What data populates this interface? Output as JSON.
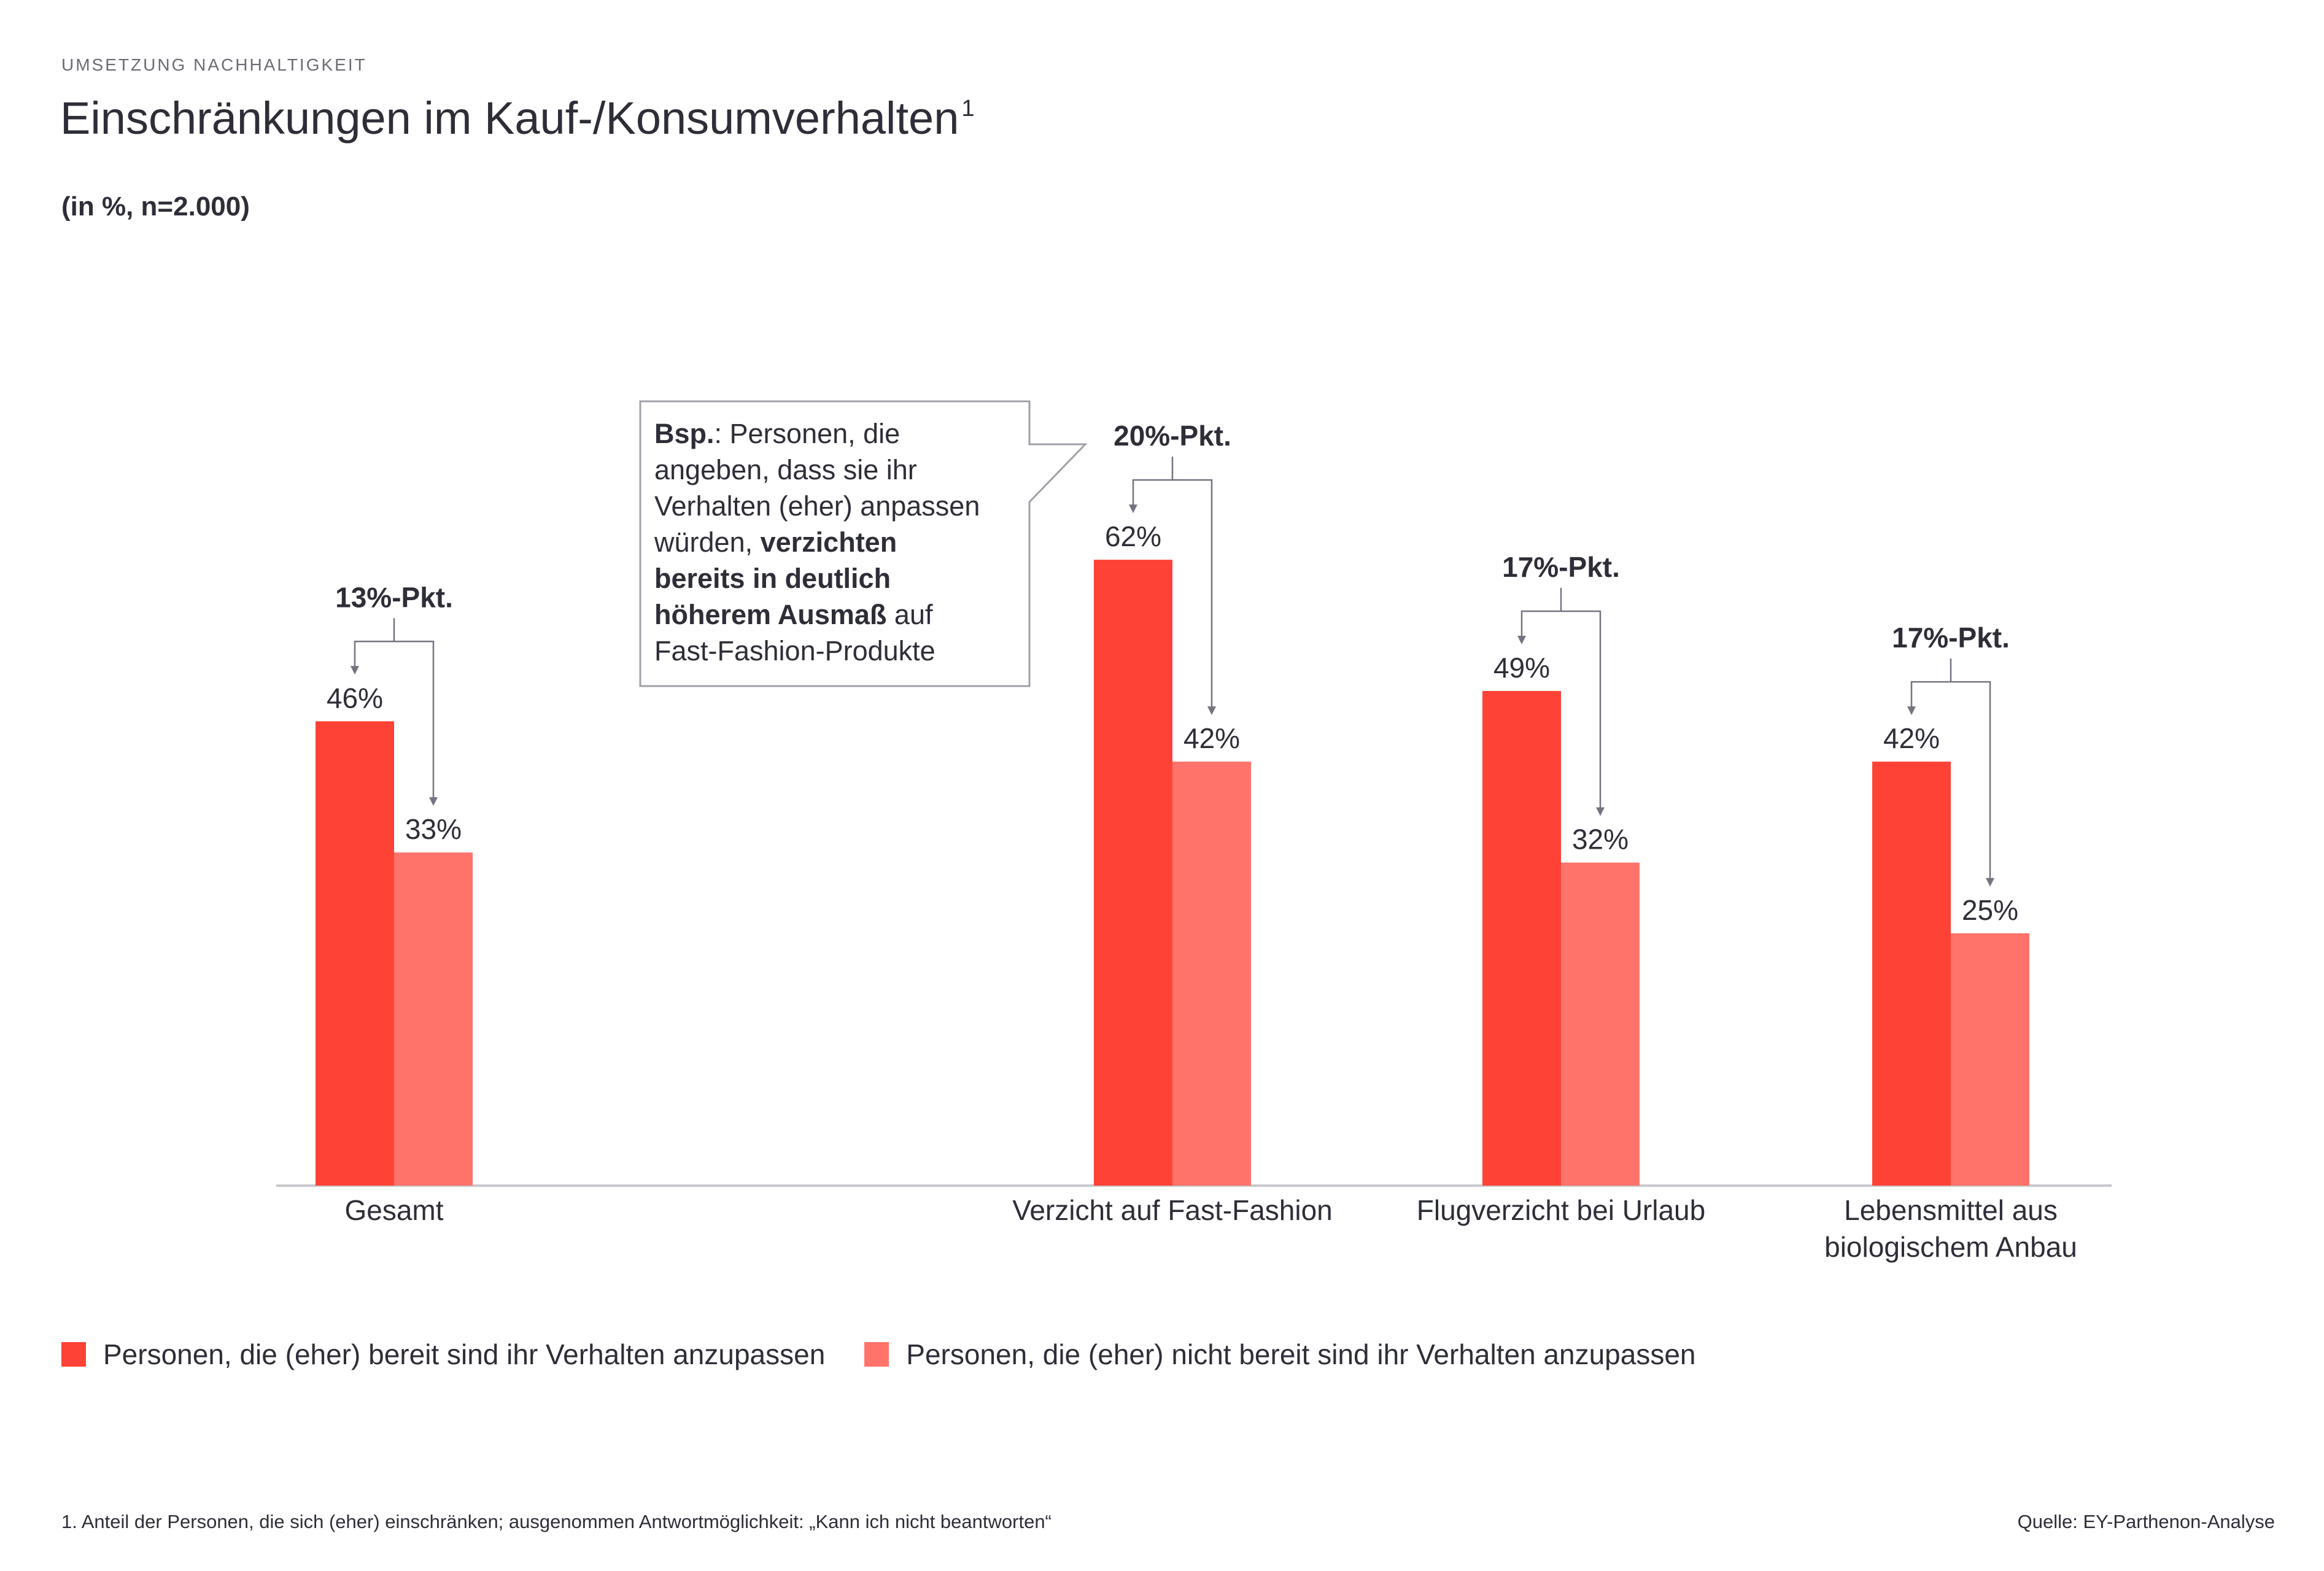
{
  "header": {
    "eyebrow": "UMSETZUNG NACHHALTIGKEIT",
    "title": "Einschränkungen im Kauf-/Konsumverhalten",
    "title_footnote_marker": "1",
    "subtitle": "(in %, n=2.000)"
  },
  "colors": {
    "series_1": "#ff4236",
    "series_2": "#ff736a",
    "axis": "#c8c8cc",
    "bracket": "#747480",
    "callout_border": "#a0a0a8"
  },
  "chart_data": {
    "type": "bar",
    "categories": [
      "Gesamt",
      "Verzicht auf Fast-Fashion",
      "Flugverzicht bei Urlaub",
      "Lebensmittel aus biologischem Anbau"
    ],
    "category_lines": [
      [
        "Gesamt"
      ],
      [
        "Verzicht auf Fast-Fashion"
      ],
      [
        "Flugverzicht bei Urlaub"
      ],
      [
        "Lebensmittel aus",
        "biologischem Anbau"
      ]
    ],
    "series": [
      {
        "name": "Personen, die (eher) bereit sind ihr Verhalten anzupassen",
        "values": [
          46,
          62,
          49,
          42
        ],
        "labels": [
          "46%",
          "62%",
          "49%",
          "42%"
        ]
      },
      {
        "name": "Personen, die (eher) nicht bereit sind ihr Verhalten anzupassen",
        "values": [
          33,
          42,
          32,
          25
        ],
        "labels": [
          "33%",
          "42%",
          "32%",
          "25%"
        ]
      }
    ],
    "differences": [
      "13%-Pkt.",
      "20%-Pkt.",
      "17%-Pkt.",
      "17%-Pkt."
    ],
    "ylim": [
      0,
      100
    ],
    "title": "Einschränkungen im Kauf-/Konsumverhalten",
    "xlabel": "",
    "ylabel": "",
    "grid": false,
    "legend_position": "bottom-left"
  },
  "callout": {
    "lines": [
      [
        {
          "t": "Bsp.",
          "b": true
        },
        {
          "t": ": Personen, die",
          "b": false
        }
      ],
      [
        {
          "t": "angeben, dass sie ihr",
          "b": false
        }
      ],
      [
        {
          "t": "Verhalten (eher) anpassen",
          "b": false
        }
      ],
      [
        {
          "t": "würden, ",
          "b": false
        },
        {
          "t": "verzichten",
          "b": true
        }
      ],
      [
        {
          "t": "bereits in deutlich",
          "b": true
        }
      ],
      [
        {
          "t": "höherem Ausmaß",
          "b": true
        },
        {
          "t": " auf",
          "b": false
        }
      ],
      [
        {
          "t": "Fast-Fashion-Produkte",
          "b": false
        }
      ]
    ]
  },
  "legend": {
    "items": [
      "Personen, die (eher) bereit sind ihr Verhalten anzupassen",
      "Personen, die (eher) nicht bereit sind ihr Verhalten anzupassen"
    ]
  },
  "footer": {
    "footnote": "1. Anteil der Personen, die sich (eher) einschränken; ausgenommen Antwortmöglichkeit: „Kann ich nicht beantworten“",
    "source": "Quelle: EY-Parthenon-Analyse"
  }
}
